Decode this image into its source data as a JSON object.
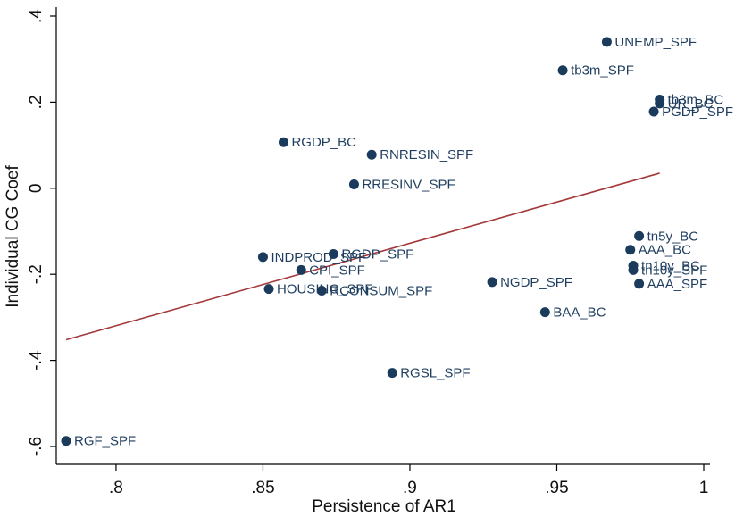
{
  "chart_data": {
    "type": "scatter",
    "title": "",
    "xlabel": "Persistence of AR1",
    "ylabel": "Individual CG Coef",
    "xlim": [
      0.783,
      1.003
    ],
    "ylim": [
      -0.6,
      0.4
    ],
    "xticks": [
      {
        "value": 0.8,
        "label": ".8"
      },
      {
        "value": 0.85,
        "label": ".85"
      },
      {
        "value": 0.9,
        "label": ".9"
      },
      {
        "value": 0.95,
        "label": ".95"
      },
      {
        "value": 1.0,
        "label": "1"
      }
    ],
    "yticks": [
      {
        "value": -0.6,
        "label": "-.6"
      },
      {
        "value": -0.4,
        "label": "-.4"
      },
      {
        "value": -0.2,
        "label": "-.2"
      },
      {
        "value": 0.0,
        "label": "0"
      },
      {
        "value": 0.2,
        "label": ".2"
      },
      {
        "value": 0.4,
        "label": ".4"
      }
    ],
    "grid": false,
    "legend": "none",
    "points": [
      {
        "label": "UNEMP_SPF",
        "x": 0.967,
        "y": 0.34
      },
      {
        "label": "tb3m_SPF",
        "x": 0.952,
        "y": 0.274
      },
      {
        "label": "tb3m_BC",
        "x": 0.985,
        "y": 0.206
      },
      {
        "label": "UR_BC",
        "x": 0.985,
        "y": 0.197
      },
      {
        "label": "PGDP_SPF",
        "x": 0.983,
        "y": 0.178
      },
      {
        "label": "RGDP_BC",
        "x": 0.857,
        "y": 0.107
      },
      {
        "label": "RNRESIN_SPF",
        "x": 0.887,
        "y": 0.078
      },
      {
        "label": "RRESINV_SPF",
        "x": 0.881,
        "y": 0.009
      },
      {
        "label": "tn5y_BC",
        "x": 0.978,
        "y": -0.111
      },
      {
        "label": "AAA_BC",
        "x": 0.975,
        "y": -0.143
      },
      {
        "label": "INDPROD_SPF",
        "x": 0.85,
        "y": -0.16
      },
      {
        "label": "RGDP_SPF",
        "x": 0.874,
        "y": -0.153
      },
      {
        "label": "CPI_SPF",
        "x": 0.863,
        "y": -0.19
      },
      {
        "label": "tn10y_BC",
        "x": 0.976,
        "y": -0.18
      },
      {
        "label": "tn10y_SPF",
        "x": 0.976,
        "y": -0.19
      },
      {
        "label": "NGDP_SPF",
        "x": 0.928,
        "y": -0.218
      },
      {
        "label": "AAA_SPF",
        "x": 0.978,
        "y": -0.222
      },
      {
        "label": "HOUSING_SPF",
        "x": 0.852,
        "y": -0.234
      },
      {
        "label": "RCONSUM_SPF",
        "x": 0.87,
        "y": -0.238
      },
      {
        "label": "BAA_BC",
        "x": 0.946,
        "y": -0.288
      },
      {
        "label": "RGSL_SPF",
        "x": 0.894,
        "y": -0.429
      },
      {
        "label": "RGF_SPF",
        "x": 0.783,
        "y": -0.587
      }
    ],
    "fit_line": {
      "x": [
        0.783,
        0.985
      ],
      "y": [
        -0.352,
        0.035
      ]
    },
    "colors": {
      "points": "#1a3b5c",
      "labels": "#1f3e5f",
      "fit_line": "#a3393a"
    }
  }
}
